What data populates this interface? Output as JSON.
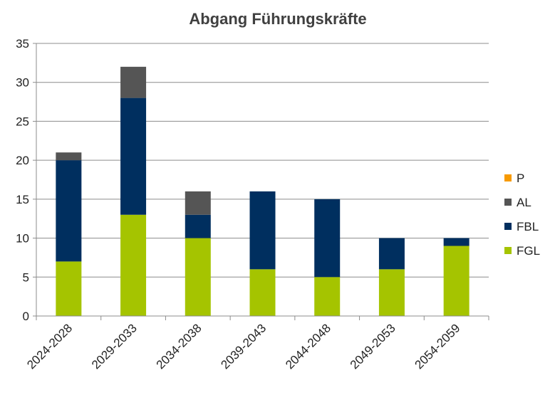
{
  "chart_data": {
    "type": "bar",
    "stacked": true,
    "title": "Abgang Führungskräfte",
    "xlabel": "",
    "ylabel": "",
    "ylim": [
      0,
      35
    ],
    "yticks": [
      0,
      5,
      10,
      15,
      20,
      25,
      30,
      35
    ],
    "grid": true,
    "legend_position": "right",
    "categories": [
      "2024-2028",
      "2029-2033",
      "2034-2038",
      "2039-2043",
      "2044-2048",
      "2049-2053",
      "2054-2059"
    ],
    "series": [
      {
        "name": "FGL",
        "color": "#a5c400",
        "values": [
          7,
          13,
          10,
          6,
          5,
          6,
          9
        ]
      },
      {
        "name": "FBL",
        "color": "#002f5f",
        "values": [
          13,
          15,
          3,
          10,
          10,
          4,
          1
        ]
      },
      {
        "name": "AL",
        "color": "#555555",
        "values": [
          1,
          4,
          3,
          0,
          0,
          0,
          0
        ]
      },
      {
        "name": "P",
        "color": "#f79a00",
        "values": [
          0,
          0,
          0,
          0,
          0,
          0,
          0
        ]
      }
    ],
    "legend_order": [
      "P",
      "AL",
      "FBL",
      "FGL"
    ]
  }
}
